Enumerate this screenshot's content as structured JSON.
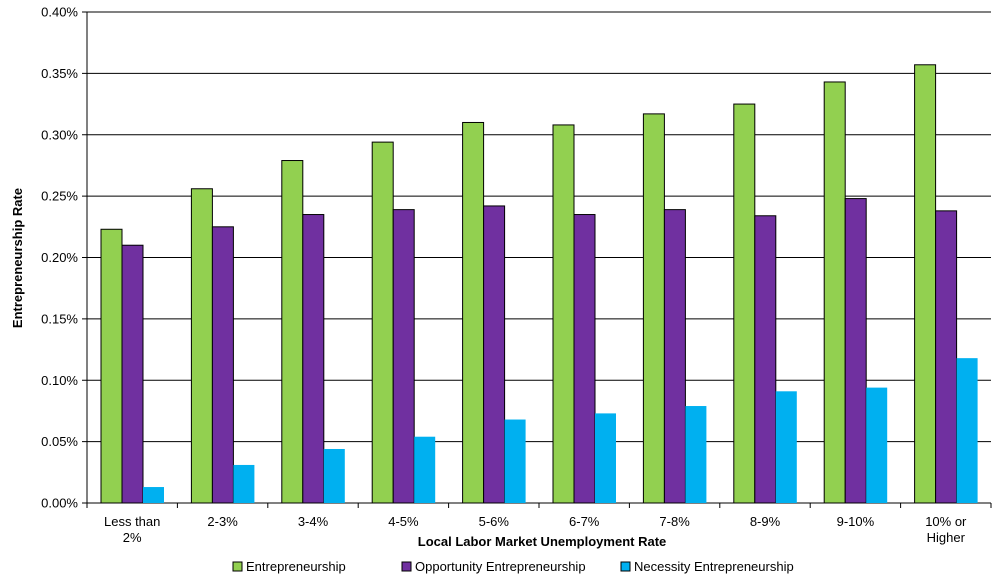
{
  "chart_data": {
    "type": "bar",
    "title": "",
    "xlabel": "Local Labor Market Unemployment Rate",
    "ylabel": "Entrepreneurship Rate",
    "ylim": [
      0,
      0.4
    ],
    "y_ticks": [
      "0.00%",
      "0.05%",
      "0.10%",
      "0.15%",
      "0.20%",
      "0.25%",
      "0.30%",
      "0.35%",
      "0.40%"
    ],
    "grid": true,
    "legend_position": "bottom",
    "categories": [
      [
        "Less than",
        "2%"
      ],
      [
        "2-3%"
      ],
      [
        "3-4%"
      ],
      [
        "4-5%"
      ],
      [
        "5-6%"
      ],
      [
        "6-7%"
      ],
      [
        "7-8%"
      ],
      [
        "8-9%"
      ],
      [
        "9-10%"
      ],
      [
        "10% or",
        "Higher"
      ]
    ],
    "series": [
      {
        "name": "Entrepreneurship",
        "color": "#92D050",
        "values": [
          0.223,
          0.256,
          0.279,
          0.294,
          0.31,
          0.308,
          0.317,
          0.325,
          0.343,
          0.357
        ]
      },
      {
        "name": "Opportunity Entrepreneurship",
        "color": "#7030A0",
        "values": [
          0.21,
          0.225,
          0.235,
          0.239,
          0.242,
          0.235,
          0.239,
          0.234,
          0.248,
          0.238
        ]
      },
      {
        "name": "Necessity Entrepreneurship",
        "color": "#00B0F0",
        "values": [
          0.013,
          0.031,
          0.044,
          0.054,
          0.068,
          0.073,
          0.079,
          0.091,
          0.094,
          0.118
        ]
      }
    ]
  }
}
